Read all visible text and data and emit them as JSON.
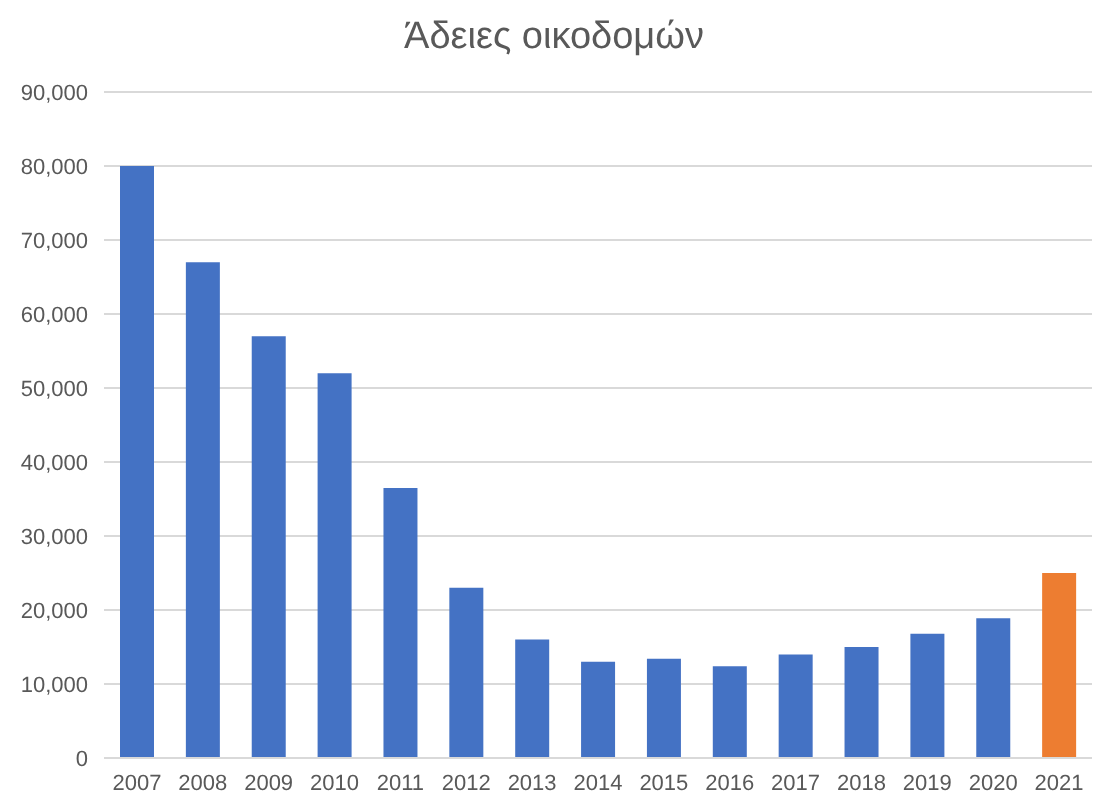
{
  "chart_data": {
    "type": "bar",
    "title": "Άδειες οικοδομών",
    "categories": [
      "2007",
      "2008",
      "2009",
      "2010",
      "2011",
      "2012",
      "2013",
      "2014",
      "2015",
      "2016",
      "2017",
      "2018",
      "2019",
      "2020",
      "2021"
    ],
    "values": [
      80000,
      67000,
      57000,
      52000,
      36500,
      23000,
      16000,
      13000,
      13400,
      12400,
      14000,
      15000,
      16800,
      18900,
      25000
    ],
    "colors": [
      "#4472c4",
      "#4472c4",
      "#4472c4",
      "#4472c4",
      "#4472c4",
      "#4472c4",
      "#4472c4",
      "#4472c4",
      "#4472c4",
      "#4472c4",
      "#4472c4",
      "#4472c4",
      "#4472c4",
      "#4472c4",
      "#ed7d31"
    ],
    "ylim": [
      0,
      90000
    ],
    "yticks": [
      {
        "value": 0,
        "label": "0"
      },
      {
        "value": 10000,
        "label": "10,000"
      },
      {
        "value": 20000,
        "label": "20,000"
      },
      {
        "value": 30000,
        "label": "30,000"
      },
      {
        "value": 40000,
        "label": "40,000"
      },
      {
        "value": 50000,
        "label": "50,000"
      },
      {
        "value": 60000,
        "label": "60,000"
      },
      {
        "value": 70000,
        "label": "70,000"
      },
      {
        "value": 80000,
        "label": "80,000"
      },
      {
        "value": 90000,
        "label": "90,000"
      }
    ],
    "grid": "y"
  }
}
